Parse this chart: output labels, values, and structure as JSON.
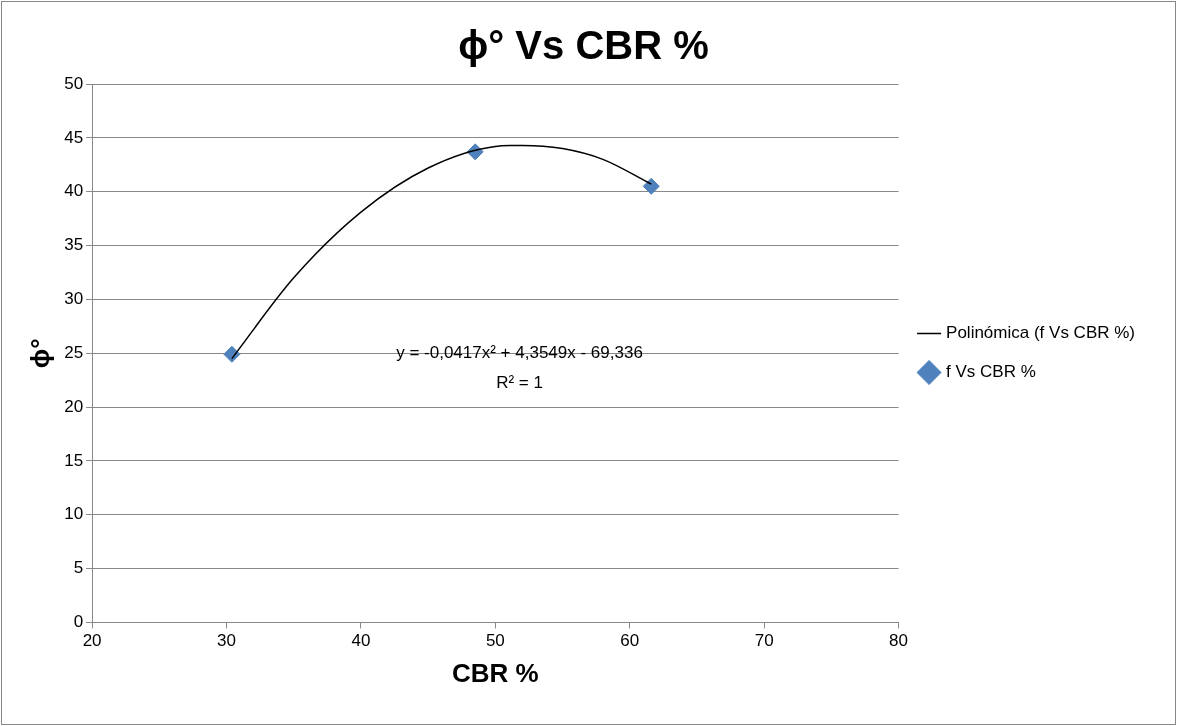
{
  "chart_data": {
    "type": "scatter",
    "title": "ϕ° Vs CBR %",
    "xlabel": "CBR %",
    "ylabel": "ϕ°",
    "xlim": [
      20,
      80
    ],
    "xticks": [
      20,
      30,
      40,
      50,
      60,
      70,
      80
    ],
    "ylim": [
      0,
      50
    ],
    "yticks": [
      0,
      5,
      10,
      15,
      20,
      25,
      30,
      35,
      40,
      45,
      50
    ],
    "grid": "y",
    "legend": "right",
    "series": [
      {
        "name": "f Vs CBR %",
        "type": "scatter",
        "color": "#4f81bd",
        "marker": "diamond",
        "x": [
          30.4,
          48.5,
          61.6
        ],
        "values": [
          24.9,
          43.7,
          40.5
        ]
      },
      {
        "name": "Polinómica (f Vs CBR %)",
        "type": "line",
        "color": "#000000",
        "marker": "none",
        "line_style": "solid",
        "x": [
          30.4,
          35,
          40,
          45,
          50,
          52,
          55,
          58,
          61.6
        ],
        "values": [
          24.5,
          32.0,
          38.1,
          42.2,
          44.2,
          44.3,
          44.0,
          43.0,
          40.7
        ]
      }
    ],
    "annotations": [
      "y = -0,0417x² + 4,3549x - 69,336",
      "R² = 1"
    ]
  }
}
